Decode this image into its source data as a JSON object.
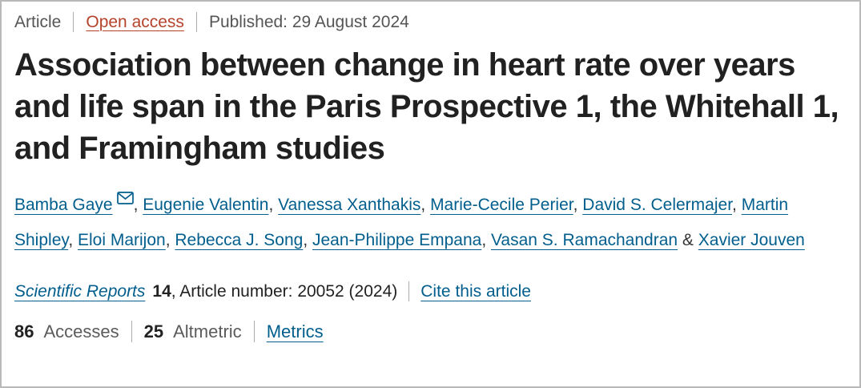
{
  "meta": {
    "article_label": "Article",
    "open_access_label": "Open access",
    "published_text": "Published: 29 August 2024"
  },
  "header": {
    "title": "Association between change in heart rate over years and life span in the Paris Prospective 1, the Whitehall 1, and Framingham studies",
    "title_lines": [
      "Association between change in heart rate over years",
      "and life span in the Paris Prospective 1, the Whitehall 1,",
      "and Framingham studies"
    ]
  },
  "authors": {
    "list": [
      "Bamba Gaye",
      "Eugenie Valentin",
      "Vanessa Xanthakis",
      "Marie-Cecile Perier",
      "David S. Celermajer",
      "Martin Shipley",
      "Eloi Marijon",
      "Rebecca J. Song",
      "Jean-Philippe Empana",
      "Vasan S. Ramachandran",
      "Xavier Jouven"
    ],
    "separator": ", ",
    "conjunction": " & ",
    "email_icon": "envelope-icon"
  },
  "journal": {
    "name": "Scientific Reports",
    "volume": "14",
    "article_info": ", Article number: 20052 (2024)",
    "cite_label": "Cite this article"
  },
  "metrics": {
    "accesses_count": "86",
    "accesses_label": "Accesses",
    "altmetric_count": "25",
    "altmetric_label": "Altmetric",
    "metrics_label": "Metrics"
  },
  "colors": {
    "link_blue": "#025e8d",
    "open_access_red": "#b5432c",
    "text_dark": "#212121",
    "text_gray": "#555555",
    "border_gray": "#b9b9b9"
  }
}
